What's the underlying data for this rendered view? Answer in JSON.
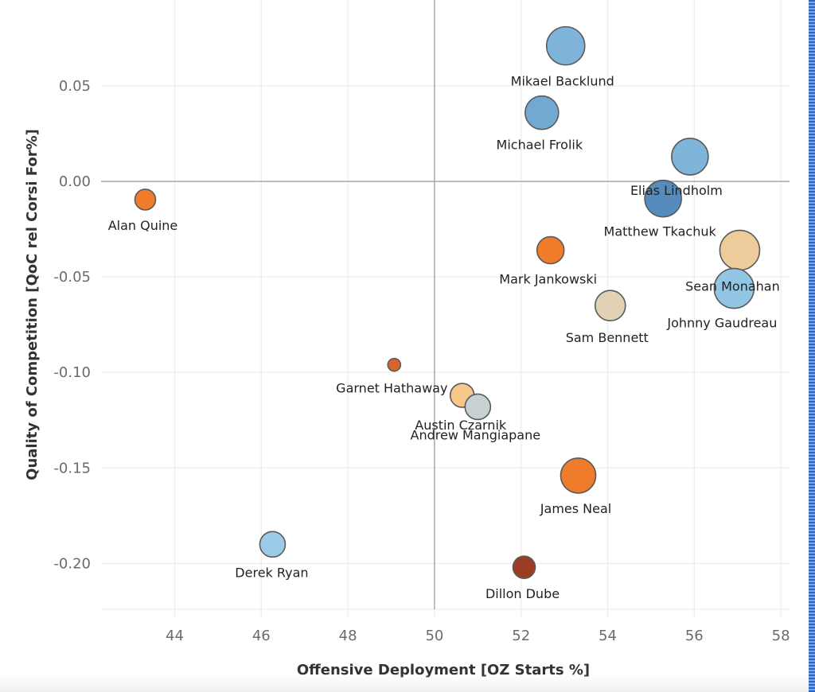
{
  "chart_data": {
    "type": "scatter",
    "subtype": "bubble",
    "title": "",
    "xlabel": "Offensive Deployment [OZ Starts %]",
    "ylabel": "Quality of Competition [QoC rel Corsi For%]",
    "xlim": [
      42.3,
      58.2
    ],
    "ylim": [
      -0.224,
      0.095
    ],
    "x_ticks": [
      44,
      46,
      48,
      50,
      52,
      54,
      56,
      58
    ],
    "x_tick_labels": [
      "44",
      "46",
      "48",
      "50",
      "52",
      "54",
      "56",
      "58"
    ],
    "y_ticks": [
      0.05,
      0.0,
      -0.05,
      -0.1,
      -0.15,
      -0.2
    ],
    "y_tick_labels": [
      "0.05",
      "0.00",
      "-0.05",
      "-0.10",
      "-0.15",
      "-0.20"
    ],
    "reference_lines": {
      "x": 50,
      "y": 0.0
    },
    "grid": true,
    "legend": "none",
    "points": [
      {
        "name": "Mikael Backlund",
        "x": 53.03,
        "y": 0.071,
        "size": 24,
        "color": "#7fb4da"
      },
      {
        "name": "Michael Frolik",
        "x": 52.48,
        "y": 0.036,
        "size": 21,
        "color": "#72a9d2"
      },
      {
        "name": "Elias Lindholm",
        "x": 55.9,
        "y": 0.013,
        "size": 23,
        "color": "#80b5db"
      },
      {
        "name": "Matthew Tkachuk",
        "x": 55.28,
        "y": -0.009,
        "size": 23,
        "color": "#568bbd"
      },
      {
        "name": "Alan Quine",
        "x": 43.32,
        "y": -0.0095,
        "size": 13,
        "color": "#ee7c2b"
      },
      {
        "name": "Mark Jankowski",
        "x": 52.68,
        "y": -0.036,
        "size": 17,
        "color": "#ee7c2b"
      },
      {
        "name": "Sean Monahan",
        "x": 57.05,
        "y": -0.036,
        "size": 25,
        "color": "#eecb9a"
      },
      {
        "name": "Johnny Gaudreau",
        "x": 56.92,
        "y": -0.056,
        "size": 25,
        "color": "#93c5e5"
      },
      {
        "name": "Sam Bennett",
        "x": 54.06,
        "y": -0.065,
        "size": 19,
        "color": "#e2d1b4"
      },
      {
        "name": "Garnet Hathaway",
        "x": 49.07,
        "y": -0.096,
        "size": 8,
        "color": "#d9642a"
      },
      {
        "name": "Austin Czarnik",
        "x": 50.64,
        "y": -0.112,
        "size": 15,
        "color": "#f8c88a"
      },
      {
        "name": "Andrew Mangiapane",
        "x": 51.0,
        "y": -0.118,
        "size": 16,
        "color": "#c7d0d2"
      },
      {
        "name": "James Neal",
        "x": 53.32,
        "y": -0.154,
        "size": 22,
        "color": "#ee7c2b"
      },
      {
        "name": "Derek Ryan",
        "x": 46.26,
        "y": -0.19,
        "size": 16,
        "color": "#9ccbe8"
      },
      {
        "name": "Dillon Dube",
        "x": 52.07,
        "y": -0.202,
        "size": 14,
        "color": "#9b3d22"
      }
    ]
  },
  "colors": {
    "grid": "#eeeeee",
    "reference_line": "#a8a8a8",
    "bubble_stroke": "#5a5a5a"
  }
}
